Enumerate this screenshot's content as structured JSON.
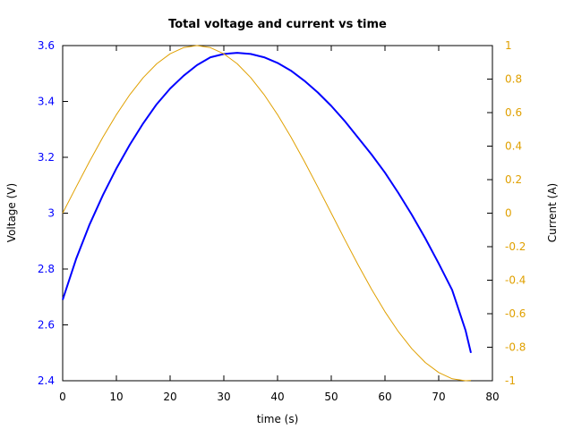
{
  "chart_data": {
    "type": "line",
    "title": "Total voltage and current vs time",
    "xlabel": "time (s)",
    "ylabel": "Voltage (V)",
    "y2label": "Current (A)",
    "xlim": [
      0,
      80
    ],
    "ylim": [
      2.4,
      3.6
    ],
    "y2lim": [
      -1,
      1
    ],
    "xticks": [
      "0",
      "10",
      "20",
      "30",
      "40",
      "50",
      "60",
      "70",
      "80"
    ],
    "yticks": [
      "2.4",
      "2.6",
      "2.8",
      "3",
      "3.2",
      "3.4",
      "3.6"
    ],
    "y2ticks": [
      "-1",
      "-0.8",
      "-0.6",
      "-0.4",
      "-0.2",
      "0",
      "0.2",
      "0.4",
      "0.6",
      "0.8",
      "1"
    ],
    "grid": false,
    "colors": {
      "voltage": "#0000ff",
      "current": "#e0a000",
      "axes": "#000000"
    },
    "series": [
      {
        "axis": "left",
        "x": [
          0,
          2.5,
          5,
          7.5,
          10,
          12.5,
          15,
          17.5,
          20,
          22.5,
          25,
          27.5,
          30,
          32.5,
          35,
          37.5,
          40,
          42.5,
          45,
          47.5,
          50,
          52.5,
          55,
          57.5,
          60,
          62.5,
          65,
          67.5,
          70,
          72.5,
          75,
          76
        ],
        "y": [
          2.69,
          2.836,
          2.959,
          3.065,
          3.16,
          3.245,
          3.322,
          3.39,
          3.446,
          3.492,
          3.53,
          3.558,
          3.57,
          3.574,
          3.57,
          3.558,
          3.538,
          3.51,
          3.474,
          3.432,
          3.384,
          3.33,
          3.27,
          3.21,
          3.145,
          3.072,
          2.994,
          2.91,
          2.82,
          2.725,
          2.58,
          2.5
        ]
      },
      {
        "axis": "right",
        "x": [
          0,
          2.5,
          5,
          7.5,
          10,
          12.5,
          15,
          17.5,
          20,
          22.5,
          25,
          27.5,
          30,
          32.5,
          35,
          37.5,
          40,
          42.5,
          45,
          47.5,
          50,
          52.5,
          55,
          57.5,
          60,
          62.5,
          65,
          67.5,
          70,
          72.5,
          75,
          76
        ],
        "y": [
          0,
          0.156,
          0.309,
          0.454,
          0.588,
          0.707,
          0.809,
          0.891,
          0.951,
          0.988,
          1.0,
          0.988,
          0.951,
          0.891,
          0.809,
          0.707,
          0.588,
          0.454,
          0.309,
          0.156,
          0,
          -0.156,
          -0.309,
          -0.454,
          -0.588,
          -0.707,
          -0.809,
          -0.891,
          -0.951,
          -0.988,
          -1.0,
          -0.998
        ]
      }
    ]
  }
}
